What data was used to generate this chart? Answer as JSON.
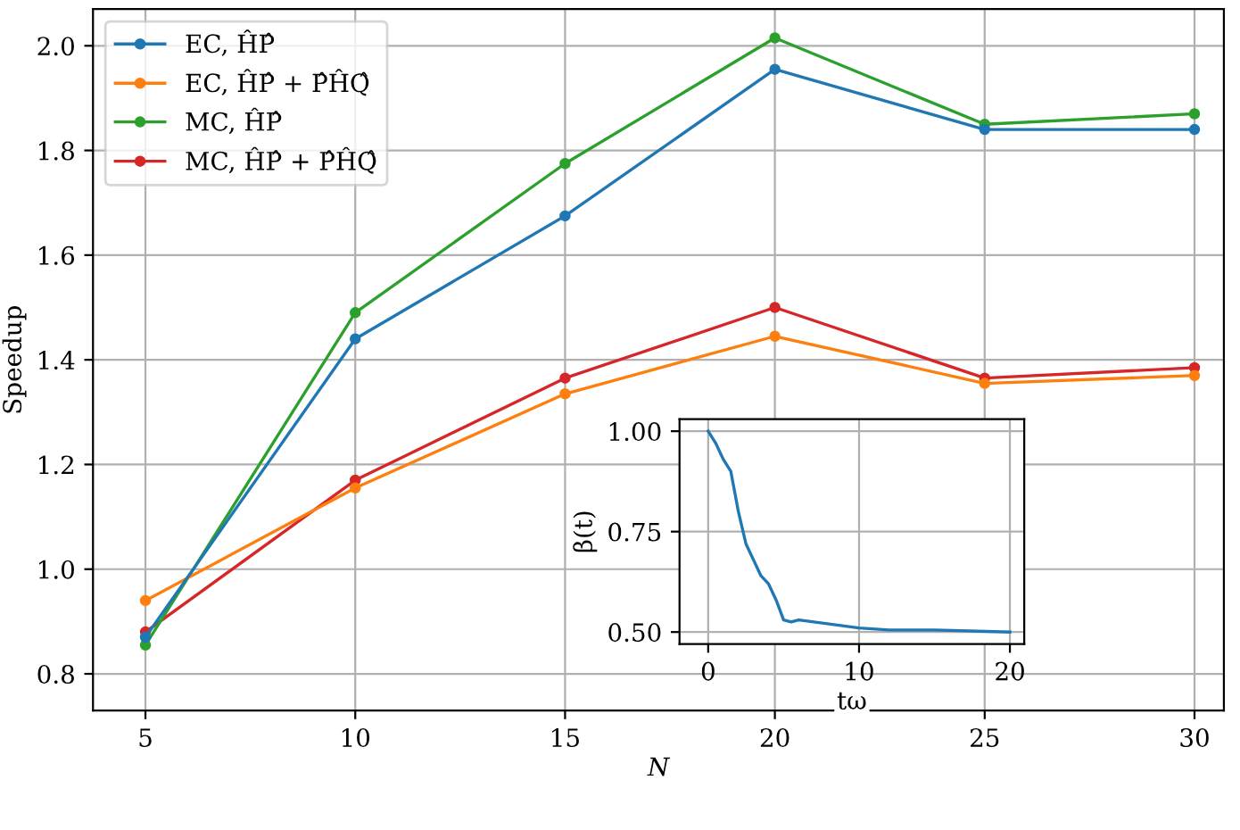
{
  "chart_data": [
    {
      "type": "line",
      "xlabel": "N",
      "ylabel": "Speedup",
      "x": [
        5,
        10,
        15,
        20,
        25,
        30
      ],
      "series": [
        {
          "name": "EC, ĤP̂",
          "color": "#1f77b4",
          "values": [
            0.87,
            1.44,
            1.675,
            1.955,
            1.84,
            1.84
          ]
        },
        {
          "name": "EC, ĤP̂ + P̂ĤQ̂",
          "color": "#ff7f0e",
          "values": [
            0.94,
            1.155,
            1.335,
            1.445,
            1.355,
            1.37
          ]
        },
        {
          "name": "MC, ĤP̂",
          "color": "#2ca02c",
          "values": [
            0.855,
            1.49,
            1.775,
            2.015,
            1.85,
            1.87
          ]
        },
        {
          "name": "MC, ĤP̂ + P̂ĤQ̂",
          "color": "#d62728",
          "values": [
            0.88,
            1.17,
            1.365,
            1.5,
            1.365,
            1.385
          ]
        }
      ],
      "xlim": [
        3.75,
        30.7
      ],
      "ylim": [
        0.73,
        2.07
      ],
      "xticks": [
        5,
        10,
        15,
        20,
        25,
        30
      ],
      "yticks": [
        {
          "value": 0.8,
          "label": "0.8"
        },
        {
          "value": 1.0,
          "label": "1.0"
        },
        {
          "value": 1.2,
          "label": "1.2"
        },
        {
          "value": 1.4,
          "label": "1.4"
        },
        {
          "value": 1.6,
          "label": "1.6"
        },
        {
          "value": 1.8,
          "label": "1.8"
        },
        {
          "value": 2.0,
          "label": "2.0"
        }
      ],
      "grid": true,
      "legend": "top left",
      "marker": "circle"
    },
    {
      "type": "line",
      "xlabel": "tω",
      "ylabel": "β(t)",
      "series": [
        {
          "color": "#1f77b4",
          "x": [
            0,
            0.5,
            1,
            1.5,
            2,
            2.5,
            3,
            3.5,
            4,
            4.5,
            5,
            5.5,
            6,
            7,
            8,
            10,
            12,
            15,
            20
          ],
          "values": [
            1.0,
            0.97,
            0.93,
            0.9,
            0.8,
            0.72,
            0.68,
            0.64,
            0.62,
            0.58,
            0.53,
            0.525,
            0.53,
            0.525,
            0.52,
            0.51,
            0.505,
            0.505,
            0.5
          ]
        }
      ],
      "xlim": [
        -1.9,
        20.95
      ],
      "ylim": [
        0.47,
        1.03
      ],
      "xticks": [
        0,
        10,
        20
      ],
      "yticks": [
        {
          "value": 0.5,
          "label": "0.50"
        },
        {
          "value": 0.75,
          "label": "0.75"
        },
        {
          "value": 1.0,
          "label": "1.00"
        }
      ],
      "grid": true,
      "marker": "none"
    }
  ]
}
